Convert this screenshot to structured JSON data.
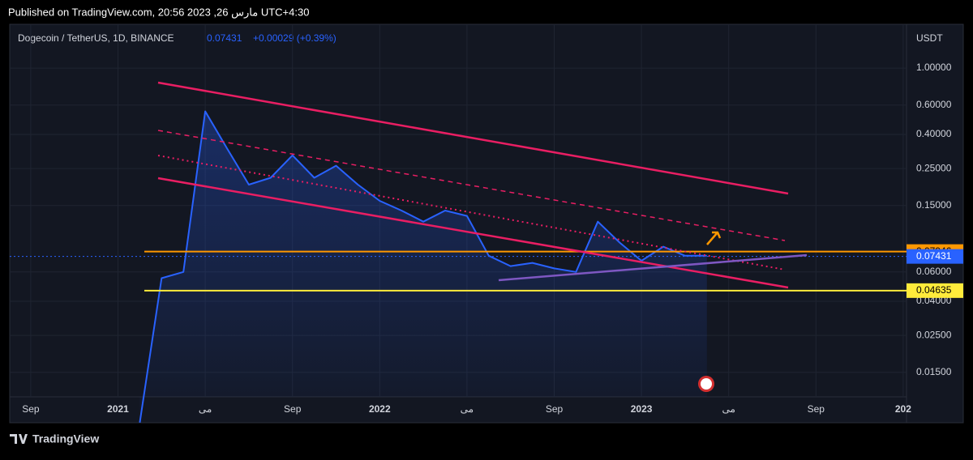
{
  "header": "Published on TradingView.com, 20:56 2023 ,26 مارس UTC+4:30",
  "footer": "TradingView",
  "chart_data": {
    "type": "line",
    "title": "Dogecoin / TetherUS, 1D, BINANCE",
    "last_price": "0.07431",
    "change": "+0.00029 (+0.39%)",
    "y_axis_label": "USDT",
    "log_scale": true,
    "grid": true,
    "categories": [
      null,
      "Sep",
      null,
      null,
      null,
      "2021",
      null,
      null,
      null,
      "می",
      null,
      null,
      null,
      "Sep",
      null,
      null,
      null,
      "2022",
      null,
      null,
      null,
      "می",
      null,
      null,
      null,
      "Sep",
      null,
      null,
      null,
      "2023",
      null,
      null,
      null,
      "می",
      null,
      null,
      null,
      "Sep",
      null,
      null,
      null,
      "202"
    ],
    "series": [
      {
        "name": "DOGEUSDT",
        "color": "#2962ff",
        "values": [
          null,
          null,
          null,
          null,
          null,
          null,
          0.0075,
          0.055,
          0.06,
          0.55,
          0.33,
          0.2,
          0.22,
          0.3,
          0.22,
          0.26,
          0.2,
          0.16,
          0.14,
          0.12,
          0.14,
          0.13,
          0.075,
          0.065,
          0.068,
          0.063,
          0.06,
          0.12,
          0.09,
          0.07,
          0.085,
          0.075,
          0.075,
          null,
          null,
          null,
          null,
          null,
          null,
          null,
          null,
          null
        ]
      }
    ],
    "ylim": [
      0.0107,
      1.83
    ],
    "yticks": [
      {
        "value": 1,
        "label": "1.00000"
      },
      {
        "value": 0.6,
        "label": "0.60000"
      },
      {
        "value": 0.4,
        "label": "0.40000"
      },
      {
        "value": 0.25,
        "label": "0.25000"
      },
      {
        "value": 0.15,
        "label": "0.15000"
      },
      {
        "value": 0.06,
        "label": "0.06000"
      },
      {
        "value": 0.04,
        "label": "0.04000"
      },
      {
        "value": 0.025,
        "label": "0.02500"
      },
      {
        "value": 0.015,
        "label": "0.01500"
      }
    ],
    "price_lines": [
      {
        "value": 0.07946,
        "color": "#ff9800"
      },
      {
        "value": 0.07431,
        "color": "#2962ff"
      },
      {
        "value": 0.04635,
        "color": "#ffeb3b"
      }
    ]
  }
}
